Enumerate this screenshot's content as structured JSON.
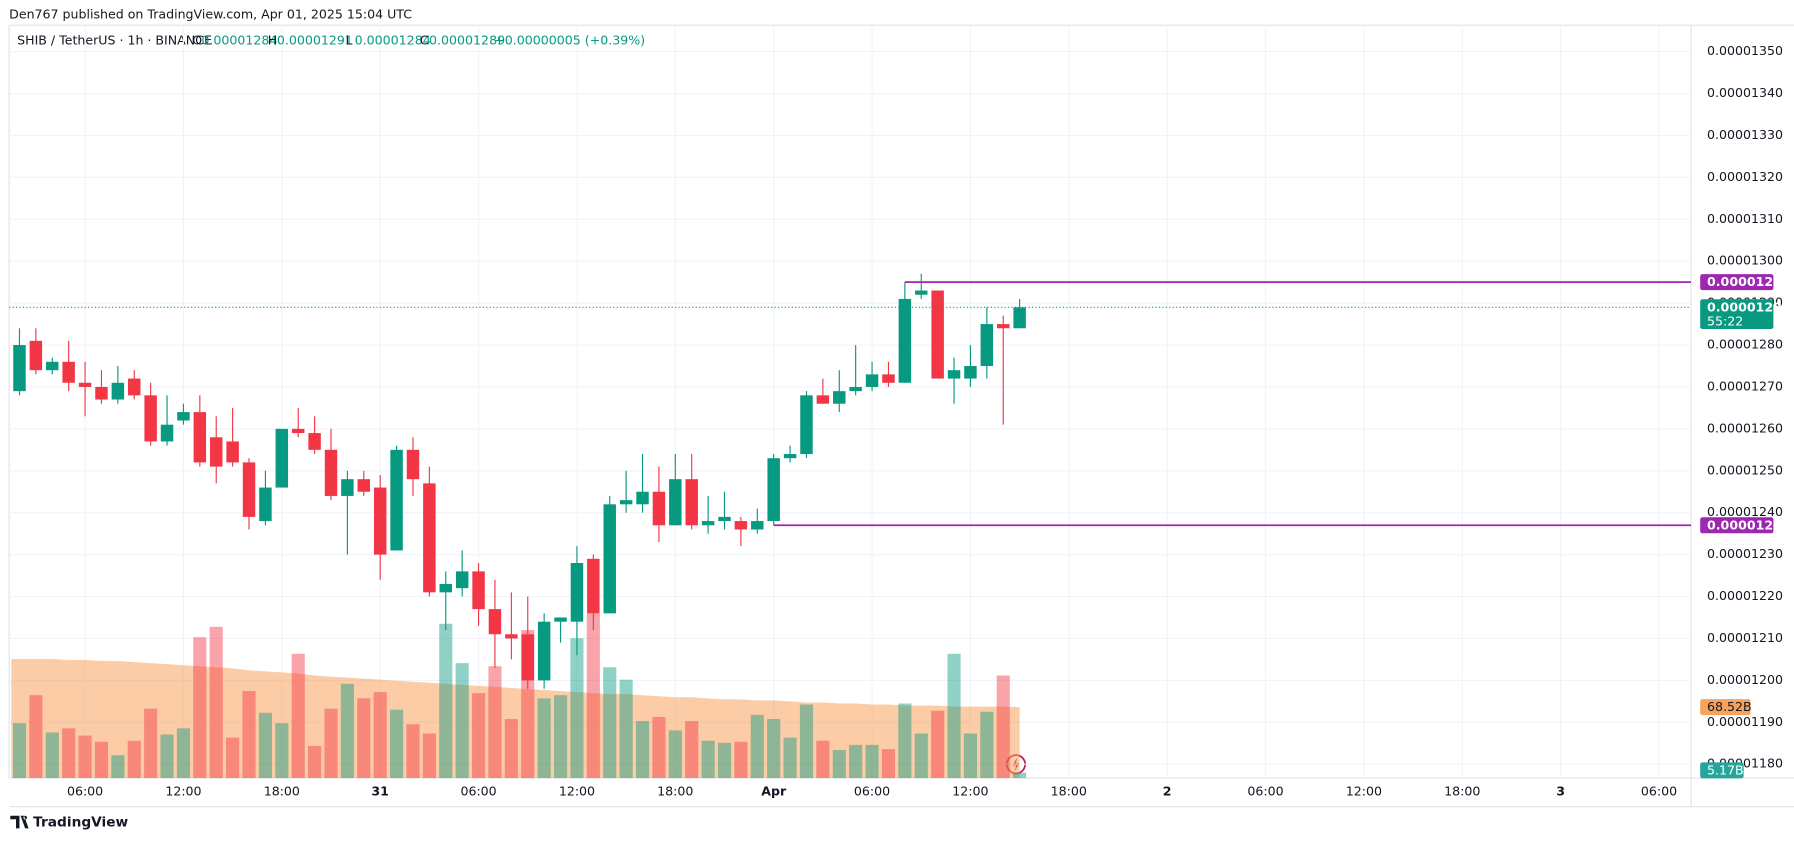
{
  "header": "Den767 published on TradingView.com, Apr 01, 2025 15:04 UTC",
  "footer": "TradingView",
  "chart_data": {
    "type": "candlestick",
    "title": "SHIB / TetherUS · 1h · BINANCE",
    "ohlc_labels": [
      "O",
      "H",
      "L",
      "C"
    ],
    "change": "+0.00000005 (+0.39%)",
    "up_color": "#089981",
    "down_color": "#f23645",
    "open": [
      1.269e-05,
      1.281e-05,
      1.274e-05,
      1.276e-05,
      1.271e-05,
      1.27e-05,
      1.267e-05,
      1.272e-05,
      1.268e-05,
      1.257e-05,
      1.262e-05,
      1.264e-05,
      1.258e-05,
      1.257e-05,
      1.252e-05,
      1.238e-05,
      1.246e-05,
      1.26e-05,
      1.259e-05,
      1.255e-05,
      1.244e-05,
      1.248e-05,
      1.246e-05,
      1.231e-05,
      1.255e-05,
      1.247e-05,
      1.221e-05,
      1.222e-05,
      1.226e-05,
      1.217e-05,
      1.211e-05,
      1.211e-05,
      1.2e-05,
      1.214e-05,
      1.214e-05,
      1.229e-05,
      1.216e-05,
      1.242e-05,
      1.242e-05,
      1.245e-05,
      1.237e-05,
      1.248e-05,
      1.237e-05,
      1.238e-05,
      1.238e-05,
      1.236e-05,
      1.238e-05,
      1.253e-05,
      1.254e-05,
      1.268e-05,
      1.266e-05,
      1.269e-05,
      1.27e-05,
      1.273e-05,
      1.271e-05,
      1.292e-05,
      1.293e-05,
      1.272e-05,
      1.272e-05,
      1.275e-05,
      1.285e-05,
      1.284e-05
    ],
    "high": [
      1.284e-05,
      1.284e-05,
      1.277e-05,
      1.281e-05,
      1.276e-05,
      1.274e-05,
      1.275e-05,
      1.274e-05,
      1.271e-05,
      1.268e-05,
      1.266e-05,
      1.268e-05,
      1.263e-05,
      1.265e-05,
      1.253e-05,
      1.25e-05,
      1.26e-05,
      1.265e-05,
      1.263e-05,
      1.26e-05,
      1.25e-05,
      1.25e-05,
      1.249e-05,
      1.256e-05,
      1.258e-05,
      1.251e-05,
      1.226e-05,
      1.231e-05,
      1.228e-05,
      1.224e-05,
      1.221e-05,
      1.22e-05,
      1.216e-05,
      1.215e-05,
      1.232e-05,
      1.23e-05,
      1.244e-05,
      1.25e-05,
      1.254e-05,
      1.251e-05,
      1.254e-05,
      1.254e-05,
      1.244e-05,
      1.245e-05,
      1.239e-05,
      1.241e-05,
      1.254e-05,
      1.256e-05,
      1.269e-05,
      1.272e-05,
      1.274e-05,
      1.28e-05,
      1.276e-05,
      1.276e-05,
      1.295e-05,
      1.297e-05,
      1.293e-05,
      1.277e-05,
      1.28e-05,
      1.289e-05,
      1.287e-05,
      1.291e-05
    ],
    "low": [
      1.268e-05,
      1.273e-05,
      1.273e-05,
      1.269e-05,
      1.263e-05,
      1.266e-05,
      1.266e-05,
      1.267e-05,
      1.256e-05,
      1.256e-05,
      1.261e-05,
      1.251e-05,
      1.247e-05,
      1.251e-05,
      1.236e-05,
      1.237e-05,
      1.246e-05,
      1.258e-05,
      1.254e-05,
      1.243e-05,
      1.23e-05,
      1.244e-05,
      1.224e-05,
      1.231e-05,
      1.244e-05,
      1.22e-05,
      1.212e-05,
      1.22e-05,
      1.213e-05,
      1.203e-05,
      1.205e-05,
      1.198e-05,
      1.198e-05,
      1.209e-05,
      1.206e-05,
      1.212e-05,
      1.216e-05,
      1.24e-05,
      1.24e-05,
      1.233e-05,
      1.237e-05,
      1.236e-05,
      1.235e-05,
      1.236e-05,
      1.232e-05,
      1.235e-05,
      1.237e-05,
      1.252e-05,
      1.253e-05,
      1.266e-05,
      1.264e-05,
      1.268e-05,
      1.269e-05,
      1.27e-05,
      1.271e-05,
      1.291e-05,
      1.272e-05,
      1.266e-05,
      1.27e-05,
      1.272e-05,
      1.261e-05,
      1.284e-05
    ],
    "close": [
      1.28e-05,
      1.274e-05,
      1.276e-05,
      1.271e-05,
      1.27e-05,
      1.267e-05,
      1.271e-05,
      1.268e-05,
      1.257e-05,
      1.261e-05,
      1.264e-05,
      1.252e-05,
      1.251e-05,
      1.252e-05,
      1.239e-05,
      1.246e-05,
      1.26e-05,
      1.259e-05,
      1.255e-05,
      1.244e-05,
      1.248e-05,
      1.245e-05,
      1.23e-05,
      1.255e-05,
      1.248e-05,
      1.221e-05,
      1.223e-05,
      1.226e-05,
      1.217e-05,
      1.211e-05,
      1.21e-05,
      1.2e-05,
      1.214e-05,
      1.215e-05,
      1.228e-05,
      1.216e-05,
      1.242e-05,
      1.243e-05,
      1.245e-05,
      1.237e-05,
      1.248e-05,
      1.237e-05,
      1.238e-05,
      1.239e-05,
      1.236e-05,
      1.238e-05,
      1.253e-05,
      1.254e-05,
      1.268e-05,
      1.266e-05,
      1.269e-05,
      1.27e-05,
      1.273e-05,
      1.271e-05,
      1.291e-05,
      1.293e-05,
      1.272e-05,
      1.274e-05,
      1.275e-05,
      1.285e-05,
      1.284e-05,
      1.289e-05
    ],
    "volume": [
      53,
      80,
      44,
      48,
      41,
      35,
      22,
      36,
      67,
      42,
      48,
      136,
      146,
      39,
      84,
      63,
      53,
      120,
      31,
      67,
      91,
      77,
      83,
      66,
      52,
      43,
      149,
      111,
      82,
      108,
      57,
      143,
      77,
      80,
      135,
      159,
      107,
      95,
      55,
      59,
      46,
      55,
      36,
      34,
      35,
      61,
      57,
      39,
      71,
      36,
      27,
      32,
      32,
      28,
      72,
      43,
      65,
      120,
      43,
      64,
      99,
      5.17
    ],
    "volume_ma": [
      115,
      115,
      115,
      114,
      114,
      113,
      113,
      112,
      111,
      110,
      109,
      108,
      107,
      106,
      104,
      103,
      102,
      101,
      99,
      98,
      97,
      96,
      95,
      94,
      93,
      92,
      91,
      90,
      89,
      88,
      87,
      86,
      85,
      84,
      83,
      82,
      81,
      81,
      80,
      79,
      78,
      78,
      77,
      76,
      76,
      75,
      75,
      74,
      73,
      73,
      72,
      72,
      71,
      71,
      70,
      70,
      70,
      69,
      69,
      69,
      69,
      68.52
    ],
    "volume_labels": {
      "last_ma": "68.52B",
      "last_volume": "5.17B"
    },
    "volume_ma_color": "#f7a35c",
    "xlim": [
      -0.63,
      101.95
    ],
    "ylim": [
      1.1767e-05,
      1.3563e-05
    ],
    "yticks": [
      {
        "value": 1.18e-05,
        "label": "0.00001180"
      },
      {
        "value": 1.19e-05,
        "label": "0.00001190"
      },
      {
        "value": 1.2e-05,
        "label": "0.00001200"
      },
      {
        "value": 1.21e-05,
        "label": "0.00001210"
      },
      {
        "value": 1.22e-05,
        "label": "0.00001220"
      },
      {
        "value": 1.23e-05,
        "label": "0.00001230"
      },
      {
        "value": 1.24e-05,
        "label": "0.00001240"
      },
      {
        "value": 1.25e-05,
        "label": "0.00001250"
      },
      {
        "value": 1.26e-05,
        "label": "0.00001260"
      },
      {
        "value": 1.27e-05,
        "label": "0.00001270"
      },
      {
        "value": 1.28e-05,
        "label": "0.00001280"
      },
      {
        "value": 1.29e-05,
        "label": "0.00001290"
      },
      {
        "value": 1.3e-05,
        "label": "0.00001300"
      },
      {
        "value": 1.31e-05,
        "label": "0.00001310"
      },
      {
        "value": 1.32e-05,
        "label": "0.00001320"
      },
      {
        "value": 1.33e-05,
        "label": "0.00001330"
      },
      {
        "value": 1.34e-05,
        "label": "0.00001340"
      },
      {
        "value": 1.35e-05,
        "label": "0.00001350"
      }
    ],
    "xticks": [
      {
        "value": 4,
        "label": "06:00"
      },
      {
        "value": 10,
        "label": "12:00"
      },
      {
        "value": 16,
        "label": "18:00"
      },
      {
        "value": 22,
        "label": "31"
      },
      {
        "value": 28,
        "label": "06:00"
      },
      {
        "value": 34,
        "label": "12:00"
      },
      {
        "value": 40,
        "label": "18:00"
      },
      {
        "value": 46,
        "label": "Apr"
      },
      {
        "value": 52,
        "label": "06:00"
      },
      {
        "value": 58,
        "label": "12:00"
      },
      {
        "value": 64,
        "label": "18:00"
      },
      {
        "value": 70,
        "label": "2"
      },
      {
        "value": 76,
        "label": "06:00"
      },
      {
        "value": 82,
        "label": "12:00"
      },
      {
        "value": 88,
        "label": "18:00"
      },
      {
        "value": 94,
        "label": "3"
      },
      {
        "value": 100,
        "label": "06:00"
      }
    ],
    "grid": true,
    "levels": [
      {
        "value": 1.295e-05,
        "from": 54,
        "color": "#9c27b0"
      },
      {
        "value": 1.237e-05,
        "from": 46,
        "color": "#9c27b0"
      }
    ],
    "last_price": {
      "value": 1.289e-05,
      "countdown": "55:22",
      "color": "#089981"
    }
  }
}
